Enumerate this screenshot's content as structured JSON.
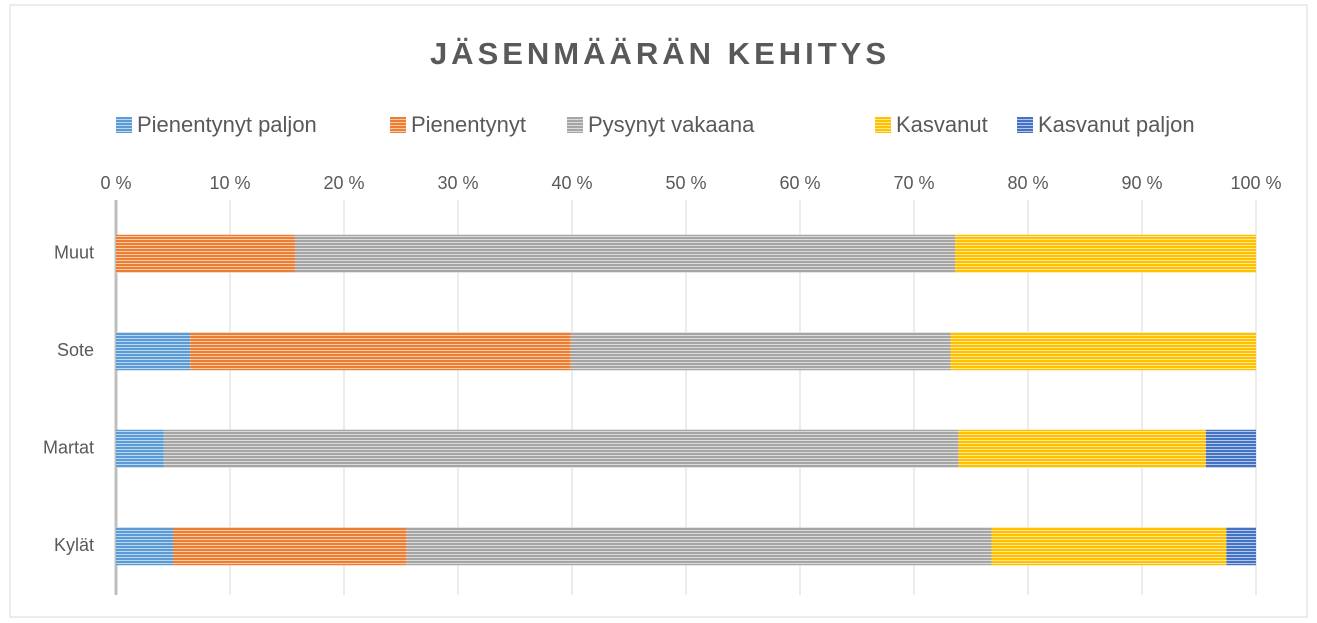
{
  "chart_data": {
    "type": "bar",
    "orientation": "horizontal",
    "stacked": true,
    "title": "JÄSENMÄÄRÄN KEHITYS",
    "categories": [
      "Muut",
      "Sote",
      "Martat",
      "Kylät"
    ],
    "series": [
      {
        "name": "Pienentynyt paljon",
        "color": "#5b9bd5",
        "values": [
          0,
          6.5,
          4.2,
          5.0
        ]
      },
      {
        "name": "Pienentynyt",
        "color": "#ed7d31",
        "values": [
          15.7,
          33.4,
          0,
          20.5
        ]
      },
      {
        "name": "Pysynyt vakaana",
        "color": "#a5a5a5",
        "values": [
          57.9,
          33.3,
          69.7,
          51.3
        ]
      },
      {
        "name": "Kasvanut",
        "color": "#ffc000",
        "values": [
          26.4,
          26.8,
          21.7,
          20.6
        ]
      },
      {
        "name": "Kasvanut paljon",
        "color": "#4472c4",
        "values": [
          0,
          0,
          4.4,
          2.6
        ]
      }
    ],
    "xlim": [
      0,
      100
    ],
    "xticks": [
      {
        "value": 0,
        "label": "0 %"
      },
      {
        "value": 10,
        "label": "10 %"
      },
      {
        "value": 20,
        "label": "20 %"
      },
      {
        "value": 30,
        "label": "30 %"
      },
      {
        "value": 40,
        "label": "40 %"
      },
      {
        "value": 50,
        "label": "50 %"
      },
      {
        "value": 60,
        "label": "60 %"
      },
      {
        "value": 70,
        "label": "70 %"
      },
      {
        "value": 80,
        "label": "80 %"
      },
      {
        "value": 90,
        "label": "90 %"
      },
      {
        "value": 100,
        "label": "100 %"
      }
    ],
    "grid": true,
    "legend": "top"
  }
}
